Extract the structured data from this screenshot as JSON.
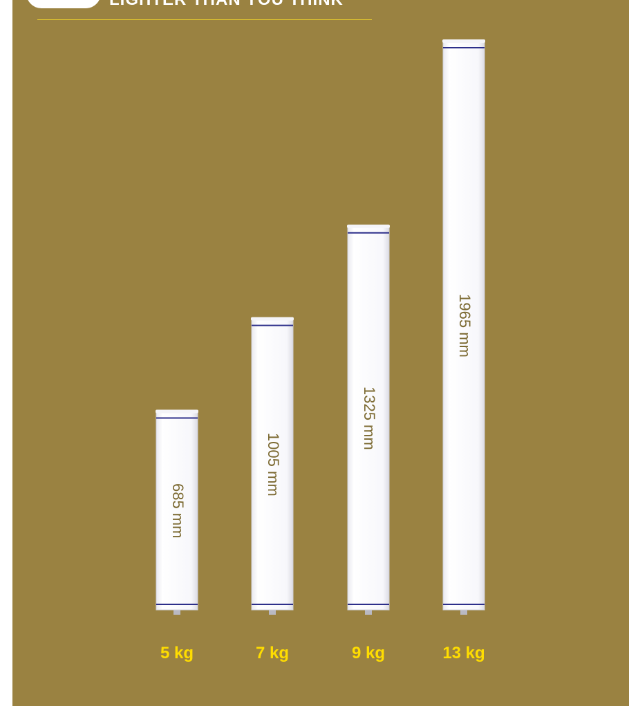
{
  "header": {
    "title": "LIGHTER THAN YOU THINK"
  },
  "colors": {
    "background": "#9a8241",
    "accent": "#ffdd00",
    "rule": "#e8cc2c",
    "column": "#ffffff",
    "band": "#2d2f8a",
    "length_text": "#7c6a32"
  },
  "chart_data": {
    "type": "bar",
    "x": [
      "685 mm",
      "1005 mm",
      "1325 mm",
      "1965 mm"
    ],
    "values": [
      685,
      1005,
      1325,
      1965
    ],
    "categories": [
      "5 kg",
      "7 kg",
      "9 kg",
      "13 kg"
    ],
    "unit": "mm",
    "ylim": [
      0,
      1965
    ],
    "grid": false,
    "legend": "none"
  }
}
